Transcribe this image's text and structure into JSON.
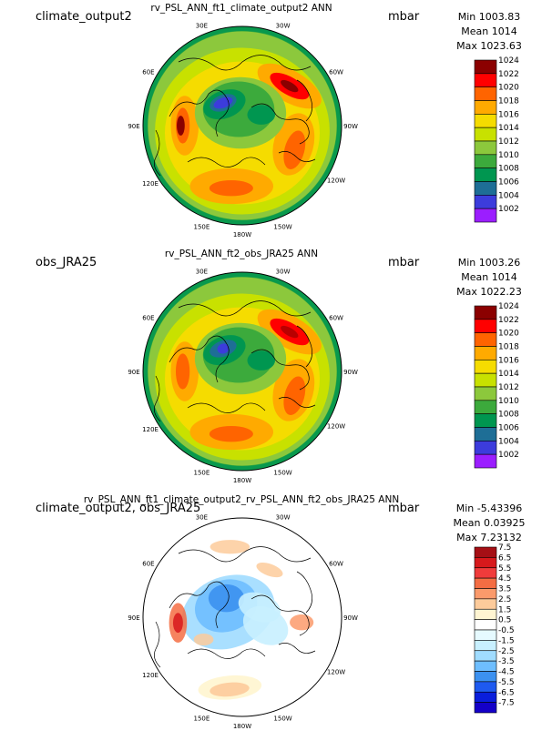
{
  "longitude_labels": [
    "30E",
    "30W",
    "60E",
    "60W",
    "90E",
    "90W",
    "120E",
    "120W",
    "150E",
    "150W",
    "180W"
  ],
  "panels": [
    {
      "left_title": "climate_output2",
      "center_title": "rv_PSL_ANN_ft1_climate_output2  ANN",
      "units": "mbar",
      "stats": [
        "Min 1003.83",
        "Mean 1014",
        "Max 1023.63"
      ],
      "colorbar": {
        "labels": [
          "1024",
          "1022",
          "1020",
          "1018",
          "1016",
          "1014",
          "1012",
          "1010",
          "1008",
          "1006",
          "1004",
          "1002"
        ],
        "colors": [
          "#8B0000",
          "#FF0000",
          "#FF6400",
          "#FFAA00",
          "#F5DC00",
          "#C8E100",
          "#8CC83C",
          "#3CAA3C",
          "#009650",
          "#1E6E96",
          "#3C3CDC",
          "#9B1EFF"
        ]
      },
      "field": "model"
    },
    {
      "left_title": "obs_JRA25",
      "center_title": "rv_PSL_ANN_ft2_obs_JRA25  ANN",
      "units": "mbar",
      "stats": [
        "Min 1003.26",
        "Mean 1014",
        "Max 1022.23"
      ],
      "colorbar": {
        "labels": [
          "1024",
          "1022",
          "1020",
          "1018",
          "1016",
          "1014",
          "1012",
          "1010",
          "1008",
          "1006",
          "1004",
          "1002"
        ],
        "colors": [
          "#8B0000",
          "#FF0000",
          "#FF6400",
          "#FFAA00",
          "#F5DC00",
          "#C8E100",
          "#8CC83C",
          "#3CAA3C",
          "#009650",
          "#1E6E96",
          "#3C3CDC",
          "#9B1EFF"
        ]
      },
      "field": "obs"
    },
    {
      "left_title": "climate_output2, obs_JRA25",
      "center_title": "rv_PSL_ANN_ft1_climate_output2_rv_PSL_ANN_ft2_obs_JRA25  ANN",
      "units": "mbar",
      "stats": [
        "Min -5.43396",
        "Mean 0.03925",
        "Max 7.23132"
      ],
      "colorbar": {
        "labels": [
          "7.5",
          "6.5",
          "5.5",
          "4.5",
          "3.5",
          "2.5",
          "1.5",
          "0.5",
          "-0.5",
          "-1.5",
          "-2.5",
          "-3.5",
          "-4.5",
          "-5.5",
          "-6.5",
          "-7.5"
        ],
        "colors": [
          "#A50F15",
          "#D7191C",
          "#F03B3B",
          "#F46D43",
          "#FB9A6B",
          "#FDCB9B",
          "#FFF5D2",
          "#FFFFFF",
          "#E6FAFF",
          "#C8F0FF",
          "#A0DCFF",
          "#6EBEFF",
          "#3C91F0",
          "#1E5AF0",
          "#0A1EDC",
          "#1400C8"
        ]
      },
      "field": "diff"
    }
  ]
}
